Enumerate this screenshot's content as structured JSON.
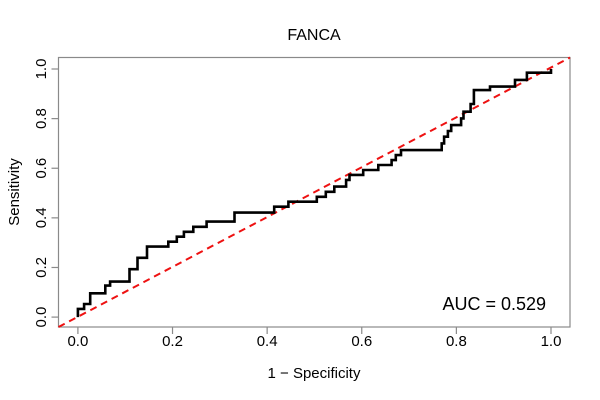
{
  "chart_data": {
    "type": "line",
    "subtype": "roc-step-curve",
    "title": "FANCA",
    "xlabel": "1 − Specificity",
    "ylabel": "Sensitivity",
    "xlim": [
      0.0,
      1.0
    ],
    "ylim": [
      0.0,
      1.0
    ],
    "x_ticks": [
      "0.0",
      "0.2",
      "0.4",
      "0.6",
      "0.8",
      "1.0"
    ],
    "y_ticks": [
      "0.0",
      "0.2",
      "0.4",
      "0.6",
      "0.8",
      "1.0"
    ],
    "grid": false,
    "legend": "none",
    "annotation": "AUC = 0.529",
    "auc_value": 0.529,
    "colors": {
      "roc_curve": "#000000",
      "reference_line": "#ee1111",
      "box_and_ticks": "#8a8a8a",
      "text": "#000000",
      "background": "#ffffff"
    },
    "series": [
      {
        "name": "ROC curve",
        "style": "solid-step",
        "points": [
          [
            0.0,
            0.0
          ],
          [
            0.0,
            0.033
          ],
          [
            0.013,
            0.033
          ],
          [
            0.013,
            0.053
          ],
          [
            0.026,
            0.053
          ],
          [
            0.026,
            0.096
          ],
          [
            0.058,
            0.096
          ],
          [
            0.058,
            0.127
          ],
          [
            0.068,
            0.127
          ],
          [
            0.068,
            0.143
          ],
          [
            0.109,
            0.143
          ],
          [
            0.109,
            0.193
          ],
          [
            0.126,
            0.193
          ],
          [
            0.126,
            0.239
          ],
          [
            0.146,
            0.239
          ],
          [
            0.146,
            0.284
          ],
          [
            0.191,
            0.284
          ],
          [
            0.191,
            0.304
          ],
          [
            0.209,
            0.304
          ],
          [
            0.209,
            0.324
          ],
          [
            0.224,
            0.324
          ],
          [
            0.224,
            0.344
          ],
          [
            0.244,
            0.344
          ],
          [
            0.244,
            0.364
          ],
          [
            0.272,
            0.364
          ],
          [
            0.272,
            0.385
          ],
          [
            0.331,
            0.385
          ],
          [
            0.331,
            0.421
          ],
          [
            0.415,
            0.421
          ],
          [
            0.415,
            0.445
          ],
          [
            0.445,
            0.445
          ],
          [
            0.445,
            0.465
          ],
          [
            0.505,
            0.465
          ],
          [
            0.505,
            0.485
          ],
          [
            0.524,
            0.485
          ],
          [
            0.524,
            0.505
          ],
          [
            0.542,
            0.505
          ],
          [
            0.542,
            0.526
          ],
          [
            0.567,
            0.526
          ],
          [
            0.567,
            0.553
          ],
          [
            0.574,
            0.553
          ],
          [
            0.574,
            0.573
          ],
          [
            0.603,
            0.573
          ],
          [
            0.603,
            0.593
          ],
          [
            0.635,
            0.593
          ],
          [
            0.635,
            0.613
          ],
          [
            0.663,
            0.613
          ],
          [
            0.663,
            0.633
          ],
          [
            0.672,
            0.633
          ],
          [
            0.672,
            0.653
          ],
          [
            0.683,
            0.653
          ],
          [
            0.683,
            0.673
          ],
          [
            0.769,
            0.673
          ],
          [
            0.769,
            0.7
          ],
          [
            0.774,
            0.7
          ],
          [
            0.774,
            0.727
          ],
          [
            0.782,
            0.727
          ],
          [
            0.782,
            0.75
          ],
          [
            0.789,
            0.75
          ],
          [
            0.789,
            0.774
          ],
          [
            0.81,
            0.774
          ],
          [
            0.81,
            0.801
          ],
          [
            0.815,
            0.801
          ],
          [
            0.815,
            0.828
          ],
          [
            0.83,
            0.828
          ],
          [
            0.83,
            0.859
          ],
          [
            0.837,
            0.859
          ],
          [
            0.837,
            0.915
          ],
          [
            0.871,
            0.915
          ],
          [
            0.871,
            0.929
          ],
          [
            0.924,
            0.929
          ],
          [
            0.924,
            0.956
          ],
          [
            0.949,
            0.956
          ],
          [
            0.949,
            0.985
          ],
          [
            1.0,
            0.985
          ],
          [
            1.0,
            1.0
          ]
        ]
      },
      {
        "name": "Chance reference line",
        "style": "dashed",
        "points": [
          [
            0.0,
            0.0
          ],
          [
            1.0,
            1.0
          ]
        ]
      }
    ]
  }
}
